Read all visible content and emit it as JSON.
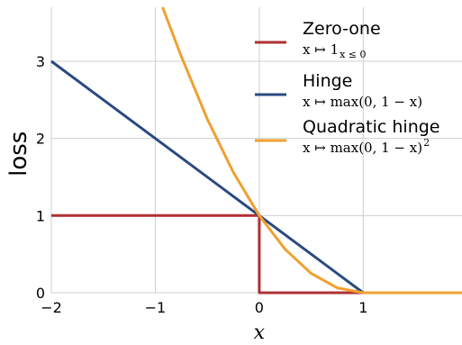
{
  "chart_data": {
    "type": "line",
    "xlabel": "x",
    "ylabel": "loss",
    "xlim": [
      -2,
      1.95
    ],
    "ylim": [
      0,
      3.7
    ],
    "xticks": [
      -2,
      -1,
      0,
      1
    ],
    "xtick_labels": [
      "−2",
      "−1",
      "0",
      "1"
    ],
    "yticks": [
      0,
      1,
      2,
      3
    ],
    "ytick_labels": [
      "0",
      "1",
      "2",
      "3"
    ],
    "grid": true,
    "legend_position": "top-right",
    "series": [
      {
        "name": "Zero-one",
        "formula": "x ↦ 1",
        "formula_sub": "x ≤ 0",
        "color": "#b03034",
        "x": [
          -2,
          0,
          0,
          1.95
        ],
        "y": [
          1,
          1,
          0,
          0
        ]
      },
      {
        "name": "Hinge",
        "formula": "x ↦ max(0, 1 − x)",
        "color": "#2a4a7f",
        "x": [
          -2,
          1,
          1.95
        ],
        "y": [
          3,
          0,
          0
        ]
      },
      {
        "name": "Quadratic hinge",
        "formula": "x ↦ max(0, 1 − x)",
        "formula_sup": "2",
        "color": "#f0a030",
        "x": [
          -0.93,
          -0.75,
          -0.5,
          -0.25,
          0,
          0.25,
          0.5,
          0.75,
          1,
          1.95
        ],
        "y": [
          3.7,
          3.0625,
          2.25,
          1.5625,
          1,
          0.5625,
          0.25,
          0.0625,
          0,
          0
        ]
      }
    ]
  }
}
